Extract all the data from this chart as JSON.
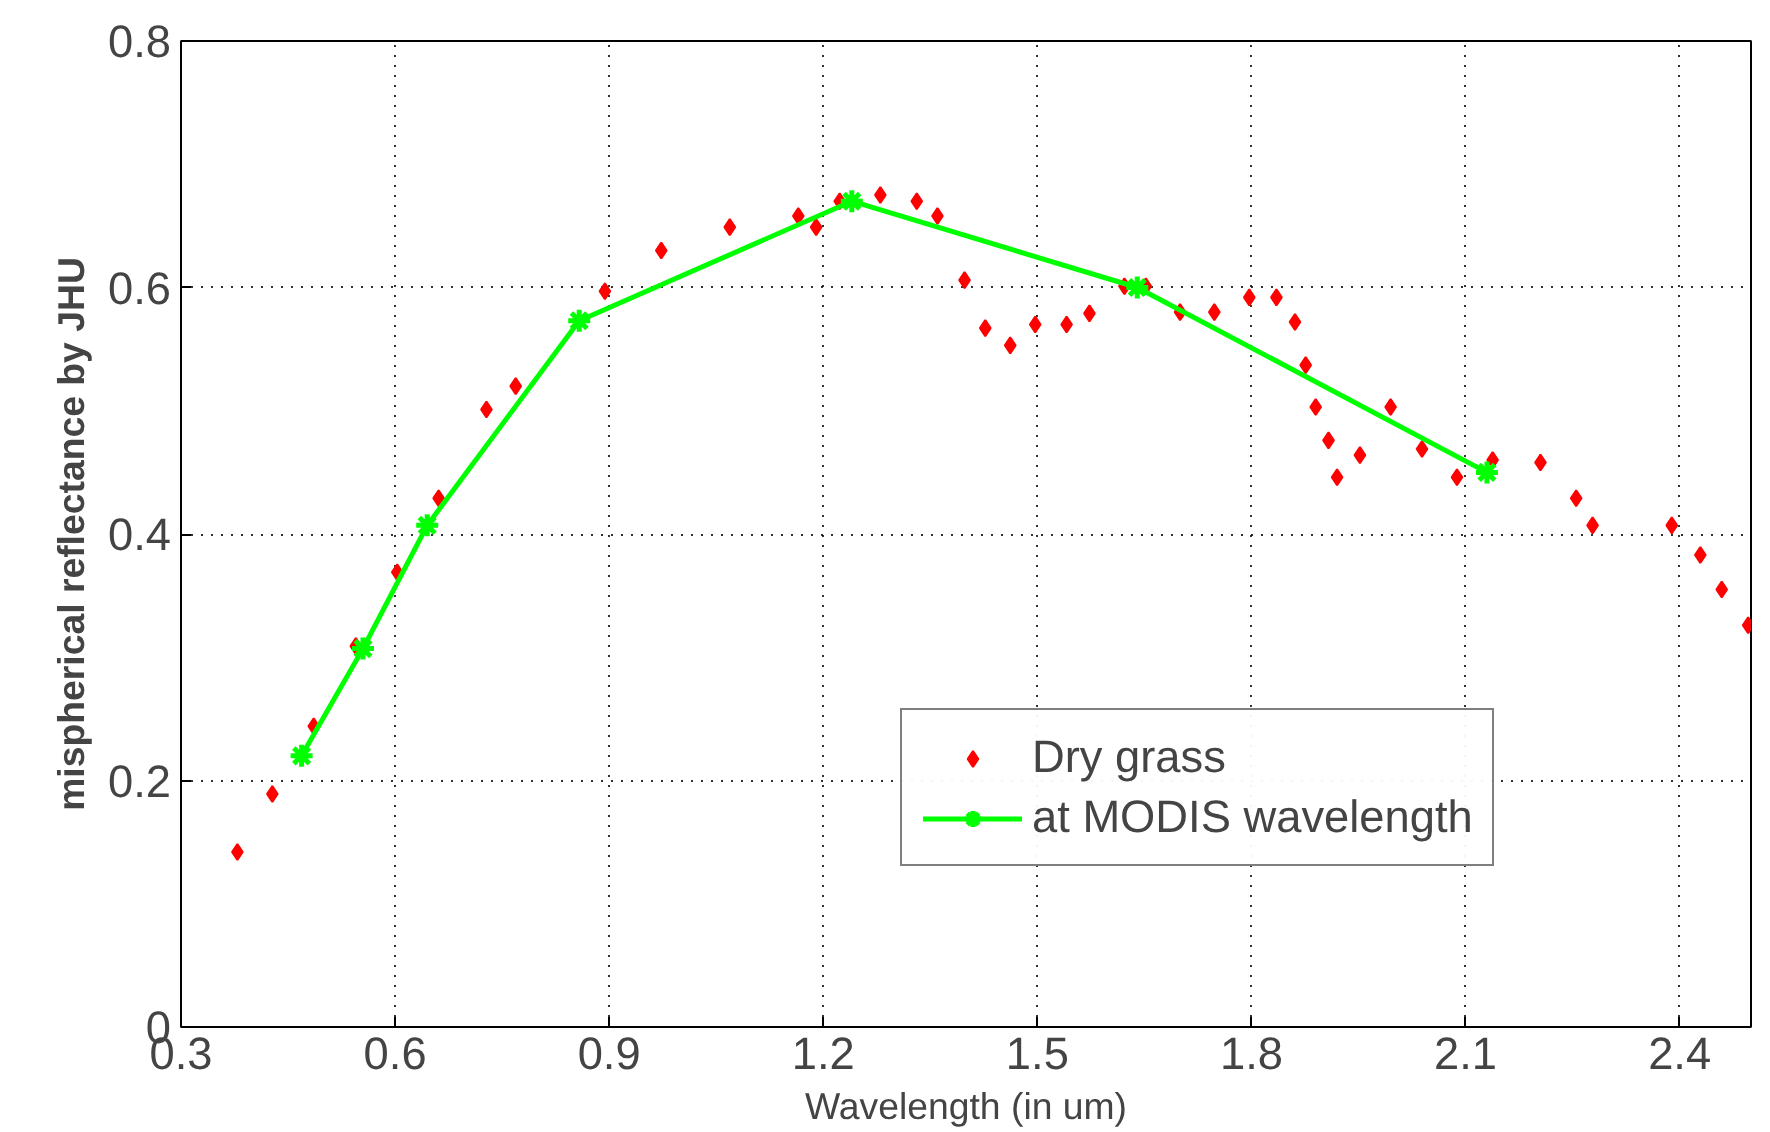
{
  "chart_data": {
    "type": "scatter",
    "xlabel": "Wavelength (in um)",
    "ylabel": "mispherical reflectance by JHU",
    "xlim": [
      0.3,
      2.5
    ],
    "ylim": [
      0,
      0.8
    ],
    "xticks": [
      0.3,
      0.6,
      0.9,
      1.2,
      1.5,
      1.8,
      2.1,
      2.4
    ],
    "yticks": [
      0,
      0.2,
      0.4,
      0.6,
      0.8
    ],
    "grid": true,
    "legend": "bottom",
    "series": [
      {
        "name": "Dry grass",
        "marker": "diamond",
        "color": "#ff0000",
        "x": [
          0.379,
          0.428,
          0.486,
          0.545,
          0.603,
          0.661,
          0.728,
          0.769,
          0.894,
          0.973,
          1.069,
          1.165,
          1.19,
          1.223,
          1.28,
          1.331,
          1.36,
          1.398,
          1.427,
          1.462,
          1.497,
          1.541,
          1.573,
          1.622,
          1.652,
          1.7,
          1.748,
          1.797,
          1.835,
          1.861,
          1.876,
          1.89,
          1.908,
          1.92,
          1.952,
          1.995,
          2.039,
          2.088,
          2.138,
          2.205,
          2.255,
          2.278,
          2.389,
          2.429,
          2.459,
          2.496
        ],
        "values": [
          0.142,
          0.189,
          0.244,
          0.309,
          0.369,
          0.429,
          0.501,
          0.52,
          0.597,
          0.63,
          0.649,
          0.658,
          0.649,
          0.67,
          0.675,
          0.67,
          0.658,
          0.606,
          0.567,
          0.553,
          0.57,
          0.57,
          0.579,
          0.601,
          0.601,
          0.58,
          0.58,
          0.592,
          0.592,
          0.572,
          0.537,
          0.503,
          0.476,
          0.446,
          0.464,
          0.503,
          0.469,
          0.446,
          0.46,
          0.458,
          0.429,
          0.407,
          0.407,
          0.383,
          0.355,
          0.326
        ]
      },
      {
        "name": "at MODIS wavelength",
        "type": "line",
        "marker": "cross",
        "line_style": "solid",
        "color": "#00ff00",
        "x": [
          0.469,
          0.555,
          0.645,
          0.858,
          1.24,
          1.64,
          2.13
        ],
        "values": [
          0.22,
          0.307,
          0.407,
          0.573,
          0.67,
          0.6,
          0.45
        ]
      }
    ]
  }
}
